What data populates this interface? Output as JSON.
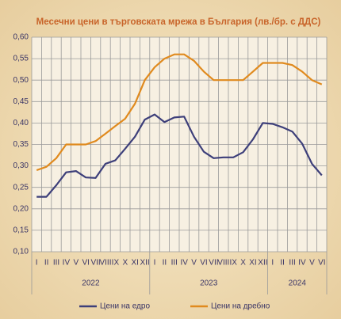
{
  "chart_data": {
    "type": "line",
    "title": "Месечни цени в търговската мрежа в България (лв./бр. с ДДС)",
    "categories": [
      "I",
      "II",
      "III",
      "IV",
      "V",
      "VI",
      "VII",
      "VIII",
      "IX",
      "X",
      "XI",
      "XII",
      "I",
      "II",
      "III",
      "IV",
      "V",
      "VI",
      "VII",
      "VIII",
      "IX",
      "X",
      "XI",
      "XII",
      "I",
      "II",
      "III",
      "IV",
      "V",
      "VI"
    ],
    "x_groups": [
      "2022",
      "2023",
      "2024"
    ],
    "series": [
      {
        "name": "Цени на едро",
        "color": "#3d3f7a",
        "values": [
          0.228,
          0.228,
          0.255,
          0.285,
          0.288,
          0.273,
          0.272,
          0.305,
          0.313,
          0.34,
          0.368,
          0.408,
          0.42,
          0.402,
          0.413,
          0.415,
          0.368,
          0.333,
          0.318,
          0.32,
          0.32,
          0.332,
          0.362,
          0.4,
          0.398,
          0.39,
          0.38,
          0.352,
          0.305,
          0.278
        ]
      },
      {
        "name": "Цени на дребно",
        "color": "#e08a1e",
        "values": [
          0.29,
          0.298,
          0.318,
          0.35,
          0.35,
          0.35,
          0.358,
          0.375,
          0.393,
          0.41,
          0.445,
          0.5,
          0.53,
          0.55,
          0.56,
          0.56,
          0.545,
          0.52,
          0.5,
          0.5,
          0.5,
          0.5,
          0.52,
          0.54,
          0.54,
          0.54,
          0.535,
          0.52,
          0.5,
          0.49
        ]
      }
    ],
    "ylim": [
      0.1,
      0.6
    ],
    "yticks": [
      {
        "value": 0.1,
        "label": "0,10"
      },
      {
        "value": 0.15,
        "label": "0,15"
      },
      {
        "value": 0.2,
        "label": "0,20"
      },
      {
        "value": 0.25,
        "label": "0,25"
      },
      {
        "value": 0.3,
        "label": "0,30"
      },
      {
        "value": 0.35,
        "label": "0,35"
      },
      {
        "value": 0.4,
        "label": "0,40"
      },
      {
        "value": 0.45,
        "label": "0,45"
      },
      {
        "value": 0.5,
        "label": "0,50"
      },
      {
        "value": 0.55,
        "label": "0,55"
      },
      {
        "value": 0.6,
        "label": "0,60"
      }
    ],
    "grid": true,
    "legend": "bottom"
  }
}
